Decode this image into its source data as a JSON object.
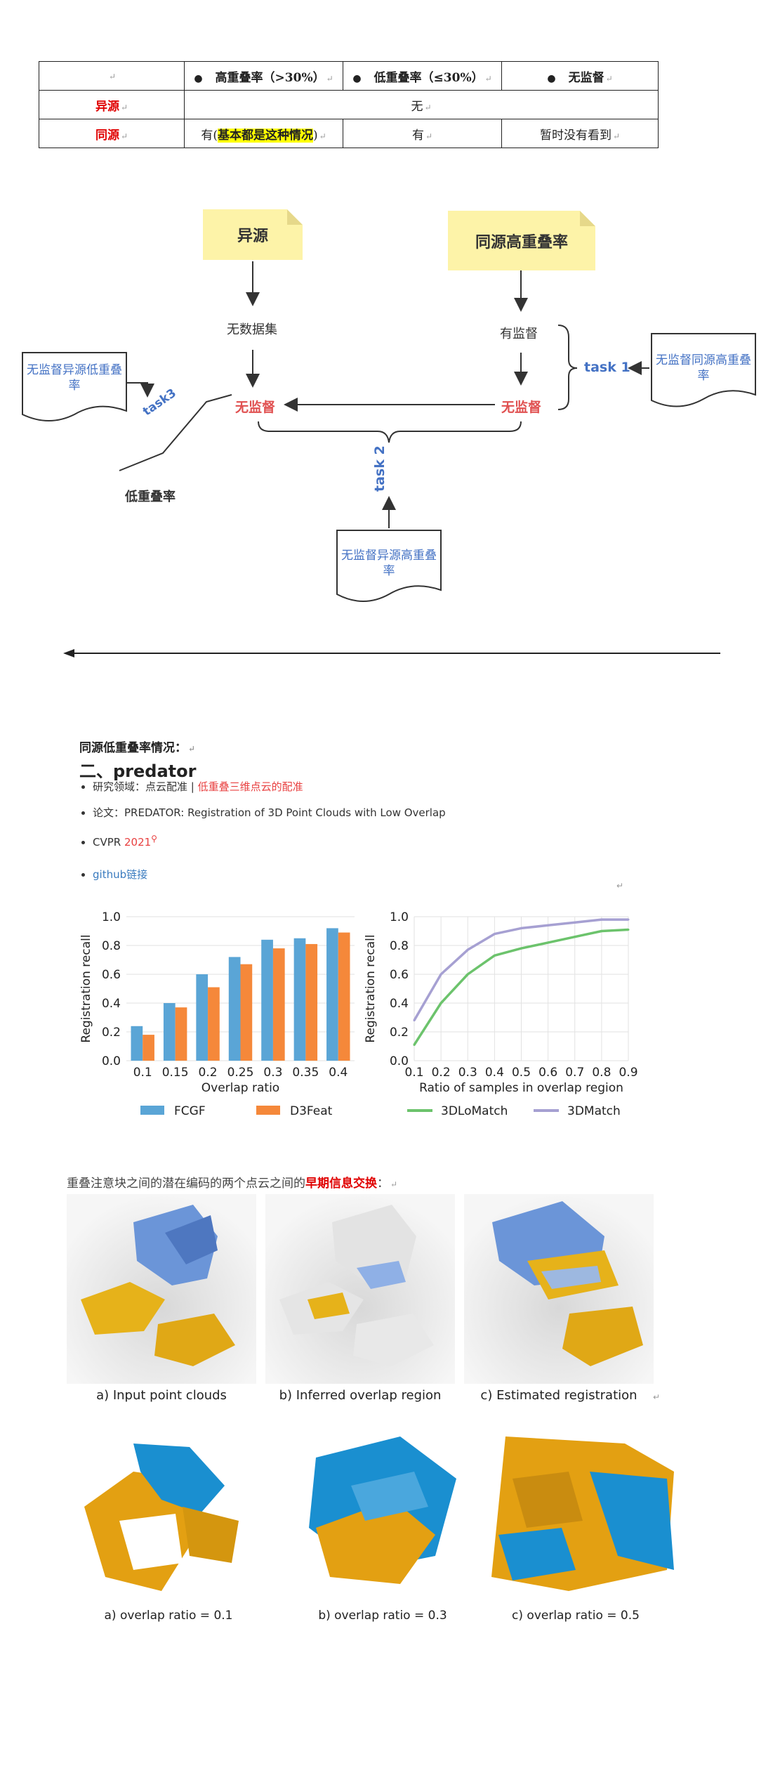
{
  "table": {
    "header": [
      "",
      "高重叠率（>30%）",
      "低重叠率（≤30%）",
      "无监督"
    ],
    "rows": [
      {
        "label": "异源",
        "cells": [
          "无"
        ]
      },
      {
        "label": "同源",
        "cell1_prefix": "有(",
        "cell1_highlight": "基本都是这种情况",
        "cell1_suffix": ")",
        "cell2": "有",
        "cell3": "暂时没有看到"
      }
    ]
  },
  "diagram": {
    "note_left": "异源",
    "note_right": "同源高重叠率",
    "no_dataset": "无数据集",
    "supervised": "有监督",
    "unsup_left": "无监督",
    "unsup_right": "无监督",
    "task1": "task 1",
    "task2": "task 2",
    "task3": "task3",
    "low_overlap": "低重叠率",
    "doc_left": "无监督异源低重叠率",
    "doc_right": "无监督同源高重叠率",
    "doc_bottom": "无监督异源高重叠率"
  },
  "section": {
    "heading1": "同源低重叠率情况：",
    "heading2": "二、predator",
    "items": [
      {
        "prefix": "研究领域：点云配准 | ",
        "highlight": "低重叠三维点云的配准"
      },
      {
        "prefix": "论文：PREDATOR: Registration of 3D Point Clouds with Low Overlap"
      },
      {
        "prefix": "CVPR ",
        "highlight": "2021"
      }
    ],
    "github": "github链接"
  },
  "chart_data": [
    {
      "type": "bar",
      "categories": [
        "0.1",
        "0.15",
        "0.2",
        "0.25",
        "0.3",
        "0.35",
        "0.4"
      ],
      "series": [
        {
          "name": "FCGF",
          "values": [
            0.24,
            0.4,
            0.6,
            0.72,
            0.84,
            0.85,
            0.92
          ],
          "color": "#5aa5d6"
        },
        {
          "name": "D3Feat",
          "values": [
            0.18,
            0.37,
            0.51,
            0.67,
            0.78,
            0.81,
            0.89
          ],
          "color": "#f5883a"
        }
      ],
      "xlabel": "Overlap ratio",
      "ylabel": "Registration recall",
      "ylim": [
        0,
        1.0
      ],
      "yticks": [
        "0.0",
        "0.2",
        "0.4",
        "0.6",
        "0.8",
        "1.0"
      ]
    },
    {
      "type": "line",
      "x": [
        0.1,
        0.2,
        0.3,
        0.4,
        0.5,
        0.6,
        0.7,
        0.8,
        0.9
      ],
      "series": [
        {
          "name": "3DLoMatch",
          "values": [
            0.11,
            0.4,
            0.6,
            0.73,
            0.78,
            0.82,
            0.86,
            0.9,
            0.91
          ],
          "color": "#6cc36c"
        },
        {
          "name": "3DMatch",
          "values": [
            0.28,
            0.6,
            0.77,
            0.88,
            0.92,
            0.94,
            0.96,
            0.98,
            0.98
          ],
          "color": "#a6a0d2"
        }
      ],
      "xticks": [
        "0.1",
        "0.2",
        "0.3",
        "0.4",
        "0.5",
        "0.6",
        "0.7",
        "0.8",
        "0.9"
      ],
      "xlabel": "Ratio of samples in overlap region",
      "ylabel": "Registration recall",
      "ylim": [
        0,
        1.0
      ],
      "yticks": [
        "0.0",
        "0.2",
        "0.4",
        "0.6",
        "0.8",
        "1.0"
      ],
      "grid": true
    }
  ],
  "mid_text": {
    "prefix": "重叠注意块之间的潜在编码的两个点云之间的",
    "highlight": "早期信息交换",
    "suffix": "："
  },
  "captions_row1": [
    "a) Input point clouds",
    "b) Inferred overlap region",
    "c) Estimated registration"
  ],
  "captions_row2": [
    "a) overlap ratio = 0.1",
    "b) overlap ratio = 0.3",
    "c) overlap ratio = 0.5"
  ]
}
